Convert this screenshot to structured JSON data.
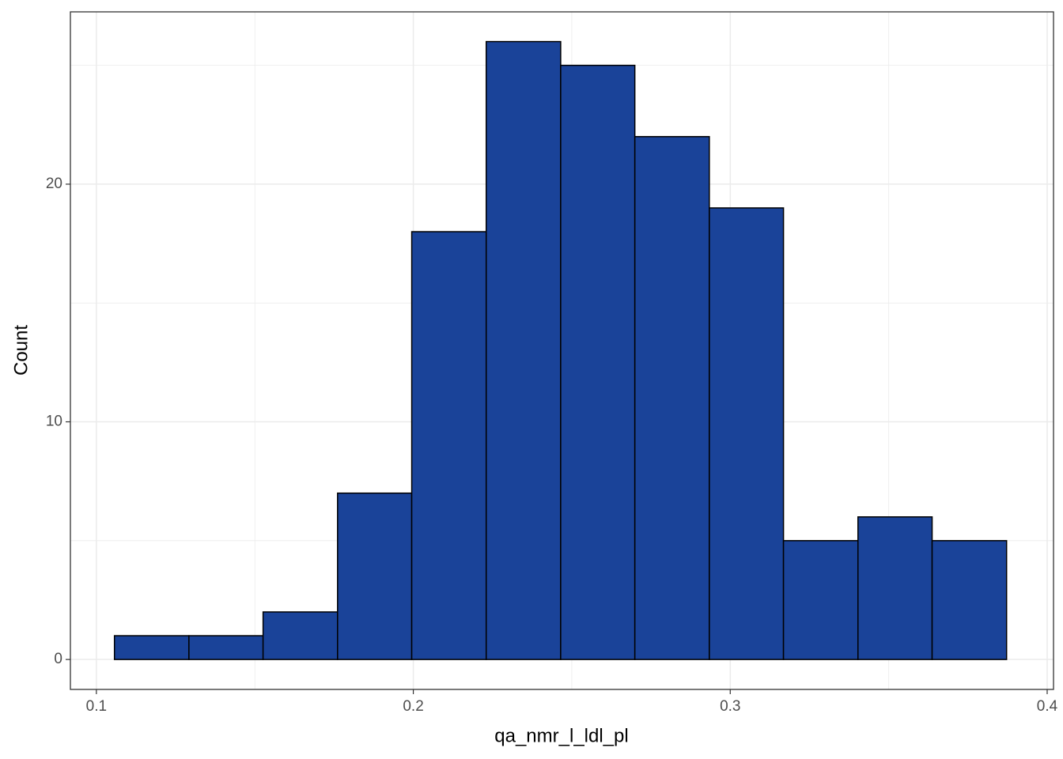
{
  "chart_data": {
    "type": "histogram",
    "x_label": "qa_nmr_l_ldl_pl",
    "y_label": "Count",
    "bins": [
      0.1057,
      0.1292,
      0.1526,
      0.1761,
      0.1995,
      0.223,
      0.2465,
      0.2699,
      0.2934,
      0.3168,
      0.3403,
      0.3637,
      0.3872
    ],
    "values": [
      1,
      1,
      2,
      7,
      18,
      26,
      25,
      22,
      19,
      5,
      6,
      5
    ],
    "color": "#1a4399",
    "xlim": [
      0.0918,
      0.402
    ],
    "xticks": [
      0.1,
      0.2,
      0.3,
      0.4
    ],
    "ylim": [
      -1.26,
      27.25
    ],
    "yticks": [
      0,
      10,
      20
    ],
    "grid": true
  }
}
